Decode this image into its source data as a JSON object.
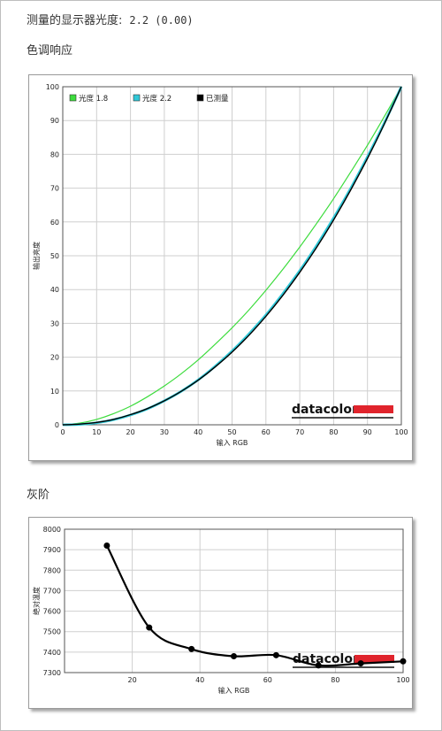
{
  "header": {
    "measured_label": "测量的显示器光度:",
    "measured_value": "2.2 (0.00)"
  },
  "sections": {
    "tone_response": "色调响应",
    "grayscale": "灰阶"
  },
  "watermark": "datacolor",
  "colors": {
    "gamma18": "#3ddc3d",
    "gamma22": "#30c8d8",
    "measured": "#000000",
    "watermark_bar": "#e0242c"
  },
  "chart_data": [
    {
      "type": "line",
      "title": "",
      "xlabel": "输入 RGB",
      "ylabel": "输出亮度",
      "xlim": [
        0,
        100
      ],
      "ylim": [
        0,
        100
      ],
      "xticks": [
        0,
        10,
        20,
        30,
        40,
        50,
        60,
        70,
        80,
        90,
        100
      ],
      "yticks": [
        0,
        10,
        20,
        30,
        40,
        50,
        60,
        70,
        80,
        90,
        100
      ],
      "grid": true,
      "legend_position": "top-left",
      "series": [
        {
          "name": "光度 1.8",
          "color_key": "gamma18",
          "x": [
            0,
            5,
            10,
            15,
            20,
            25,
            30,
            35,
            40,
            45,
            50,
            55,
            60,
            65,
            70,
            75,
            80,
            85,
            90,
            95,
            100
          ],
          "y": [
            0,
            0.5,
            1.6,
            3.3,
            5.5,
            8.3,
            11.5,
            15.1,
            19.2,
            23.8,
            28.7,
            34.0,
            39.8,
            46.0,
            52.6,
            59.6,
            66.9,
            74.7,
            82.7,
            91.2,
            100
          ]
        },
        {
          "name": "光度 2.2",
          "color_key": "gamma22",
          "x": [
            0,
            5,
            10,
            15,
            20,
            25,
            30,
            35,
            40,
            45,
            50,
            55,
            60,
            65,
            70,
            75,
            80,
            85,
            90,
            95,
            100
          ],
          "y": [
            0,
            0.1,
            0.6,
            1.5,
            2.9,
            4.7,
            7.1,
            9.9,
            13.3,
            17.3,
            21.8,
            26.9,
            32.5,
            38.8,
            45.6,
            53.1,
            61.2,
            69.9,
            79.3,
            89.3,
            100
          ]
        },
        {
          "name": "已测量",
          "color_key": "measured",
          "x": [
            0,
            5,
            10,
            15,
            20,
            25,
            30,
            35,
            40,
            45,
            50,
            55,
            60,
            65,
            70,
            75,
            80,
            85,
            90,
            95,
            100
          ],
          "y": [
            0,
            0.2,
            0.7,
            1.6,
            3.0,
            4.8,
            7.1,
            9.9,
            13.2,
            17.1,
            21.5,
            26.5,
            32.1,
            38.3,
            45.1,
            52.5,
            60.6,
            69.4,
            78.8,
            89.0,
            100
          ]
        }
      ]
    },
    {
      "type": "line",
      "title": "",
      "xlabel": "输入 RGB",
      "ylabel": "绝对温度",
      "xlim": [
        0,
        100
      ],
      "ylim": [
        7300,
        8000
      ],
      "xticks": [
        20,
        40,
        60,
        80,
        100
      ],
      "yticks": [
        7300,
        7400,
        7500,
        7600,
        7700,
        7800,
        7900,
        8000
      ],
      "grid": true,
      "series": [
        {
          "name": "",
          "color_key": "measured",
          "x": [
            12.5,
            25,
            37.5,
            50,
            62.5,
            75,
            87.5,
            100
          ],
          "y": [
            7920,
            7520,
            7415,
            7380,
            7385,
            7335,
            7345,
            7355
          ]
        }
      ]
    }
  ]
}
